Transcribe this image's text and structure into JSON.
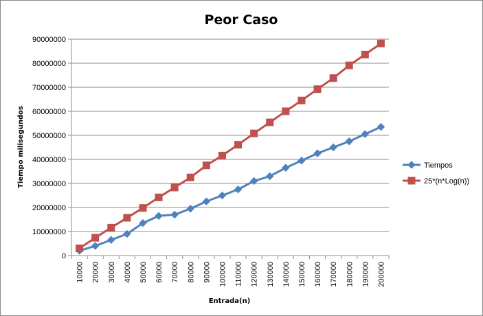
{
  "chart_data": {
    "type": "line",
    "title": "Peor Caso",
    "xlabel": "Entrada(n)",
    "ylabel": "Tiempo milisegundos",
    "categories": [
      "10000",
      "20000",
      "30000",
      "40000",
      "50000",
      "60000",
      "70000",
      "80000",
      "90000",
      "100000",
      "110000",
      "120000",
      "130000",
      "140000",
      "150000",
      "160000",
      "170000",
      "180000",
      "190000",
      "200000"
    ],
    "ylim": [
      0,
      90000000
    ],
    "yticks": [
      0,
      10000000,
      20000000,
      30000000,
      40000000,
      50000000,
      60000000,
      70000000,
      80000000,
      90000000
    ],
    "ytick_labels": [
      "0",
      "10000000",
      "20000000",
      "30000000",
      "40000000",
      "50000000",
      "60000000",
      "70000000",
      "80000000",
      "90000000"
    ],
    "grid": true,
    "legend_position": "right",
    "series": [
      {
        "name": "Tiempos",
        "color": "#4F81BD",
        "marker": "diamond",
        "values": [
          2000000,
          4000000,
          6500000,
          9000000,
          13500000,
          16500000,
          17000000,
          19500000,
          22500000,
          25000000,
          27500000,
          31000000,
          33000000,
          36500000,
          39500000,
          42500000,
          45000000,
          47500000,
          50500000,
          53500000
        ]
      },
      {
        "name": "25*(n*Log(n))",
        "color": "#C0504D",
        "marker": "square",
        "values": [
          3000000,
          7400000,
          11600000,
          15700000,
          19800000,
          24200000,
          28300000,
          32500000,
          37500000,
          41600000,
          46100000,
          50800000,
          55400000,
          60000000,
          64500000,
          69200000,
          73800000,
          79100000,
          83600000,
          88200000
        ]
      }
    ]
  }
}
